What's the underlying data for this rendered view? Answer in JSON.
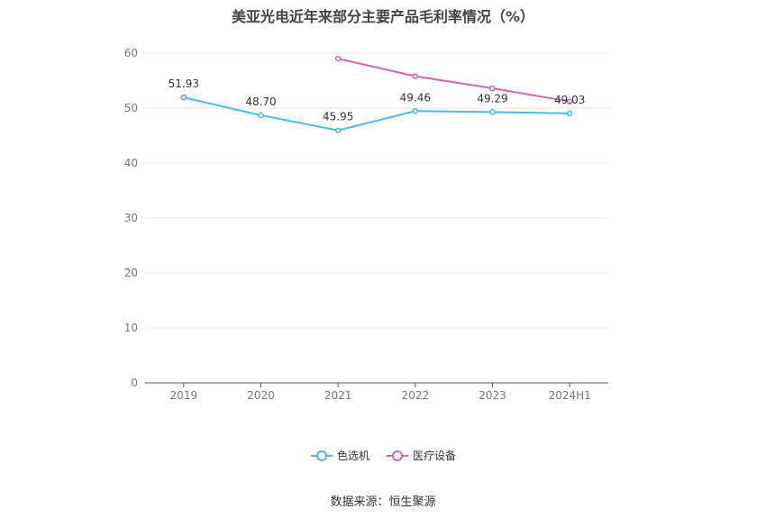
{
  "title": "美亚光电近年来部分主要产品毛利率情况（%）",
  "source_text": "数据来源：恒生聚源",
  "chart_data": {
    "type": "line",
    "title": "美亚光电近年来部分主要产品毛利率情况（%）",
    "categories": [
      "2019",
      "2020",
      "2021",
      "2022",
      "2023",
      "2024H1"
    ],
    "ylim": [
      0,
      60
    ],
    "yticks": [
      0,
      10,
      20,
      30,
      40,
      50,
      60
    ],
    "grid": true,
    "legend_position": "bottom",
    "series": [
      {
        "name": "色选机",
        "color": "#4fb7ea",
        "values": [
          51.93,
          48.7,
          45.95,
          49.46,
          49.29,
          49.03
        ],
        "labels": [
          "51.93",
          "48.70",
          "45.95",
          "49.46",
          "49.29",
          "49.03"
        ]
      },
      {
        "name": "医疗设备",
        "color": "#d664a8",
        "values": [
          null,
          null,
          59.0,
          55.8,
          53.6,
          51.2
        ],
        "labels": []
      }
    ]
  }
}
